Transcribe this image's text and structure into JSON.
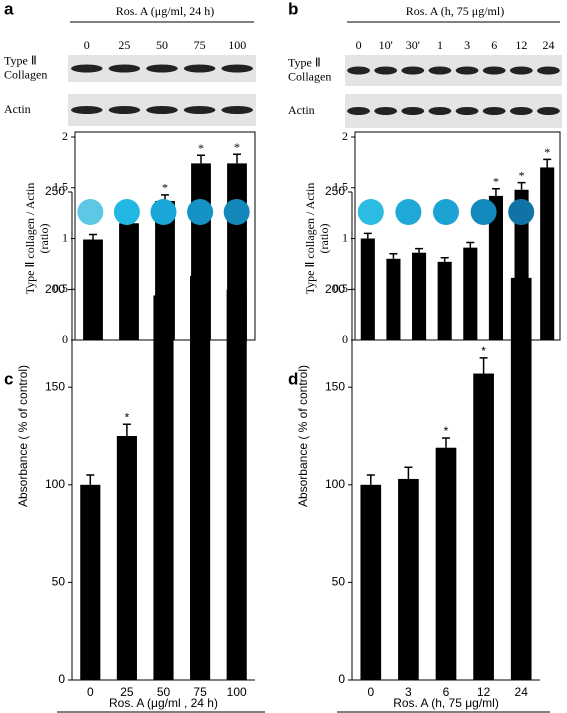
{
  "chart_data": [
    {
      "type": "bar",
      "panel_label": "a",
      "xlabel": "Ros. A (μg/ml, 24 h)",
      "categories": [
        "0",
        "25",
        "50",
        "75",
        "100"
      ],
      "blot_labels": [
        [
          "Type Ⅱ",
          "Collagen"
        ],
        [
          "Actin"
        ]
      ],
      "ylabel": "Type Ⅱ collagen / Actin",
      "ylabel_unit": "(ratio)",
      "values": [
        0.99,
        1.15,
        1.37,
        1.74,
        1.74
      ],
      "errors": [
        0.05,
        0.06,
        0.06,
        0.08,
        0.09
      ],
      "significance": [
        null,
        "*",
        "*",
        "*",
        "*"
      ],
      "color": "#000000",
      "ylim": [
        0,
        2
      ],
      "yticks": [
        0,
        0.5,
        1,
        1.5,
        2
      ]
    },
    {
      "type": "bar",
      "panel_label": "b",
      "xlabel": "Ros. A (h, 75 μg/ml)",
      "categories": [
        "0",
        "10'",
        "30'",
        "1",
        "3",
        "6",
        "12",
        "24"
      ],
      "blot_labels": [
        [
          "Type Ⅱ",
          "Collagen"
        ],
        [
          "Actin"
        ]
      ],
      "ylabel": "Type Ⅱ collagen / Actin",
      "ylabel_unit": "(ratio)",
      "values": [
        1.0,
        0.8,
        0.86,
        0.77,
        0.91,
        1.42,
        1.48,
        1.7
      ],
      "errors": [
        0.05,
        0.05,
        0.04,
        0.04,
        0.05,
        0.07,
        0.07,
        0.08
      ],
      "significance": [
        null,
        null,
        null,
        null,
        null,
        "*",
        "*",
        "*"
      ],
      "color": "#000000",
      "ylim": [
        0,
        2
      ],
      "yticks": [
        0,
        0.5,
        1,
        1.5,
        2
      ]
    },
    {
      "type": "bar",
      "panel_label": "c",
      "xlabel": "Ros. A (μg/ml , 24 h)",
      "categories": [
        "0",
        "25",
        "50",
        "75",
        "100"
      ],
      "ylabel": "Absorbance ( % of control)",
      "values": [
        100,
        125,
        197,
        207,
        200
      ],
      "errors": [
        5,
        6,
        11,
        10,
        10
      ],
      "significance": [
        null,
        "*",
        "*",
        "*",
        "*"
      ],
      "color": "#000000",
      "well_colors": [
        "#5cc8e6",
        "#21b8e3",
        "#1aa6d6",
        "#1592c4",
        "#1488bb"
      ],
      "ylim": [
        0,
        250
      ],
      "yticks": [
        0,
        50,
        100,
        150,
        200,
        250
      ]
    },
    {
      "type": "bar",
      "panel_label": "d",
      "xlabel": "Ros. A (h, 75 μg/ml)",
      "categories": [
        "0",
        "3",
        "6",
        "12",
        "24"
      ],
      "ylabel": "Absorbance ( % of control)",
      "values": [
        100,
        103,
        119,
        157,
        206
      ],
      "errors": [
        5,
        6,
        5,
        8,
        10
      ],
      "significance": [
        null,
        null,
        "*",
        "*",
        "*"
      ],
      "color": "#000000",
      "well_colors": [
        "#2bbbe3",
        "#1fa9d8",
        "#1ca3d3",
        "#1489bd",
        "#0f73a6"
      ],
      "ylim": [
        0,
        250
      ],
      "yticks": [
        0,
        50,
        100,
        150,
        200,
        250
      ]
    }
  ]
}
